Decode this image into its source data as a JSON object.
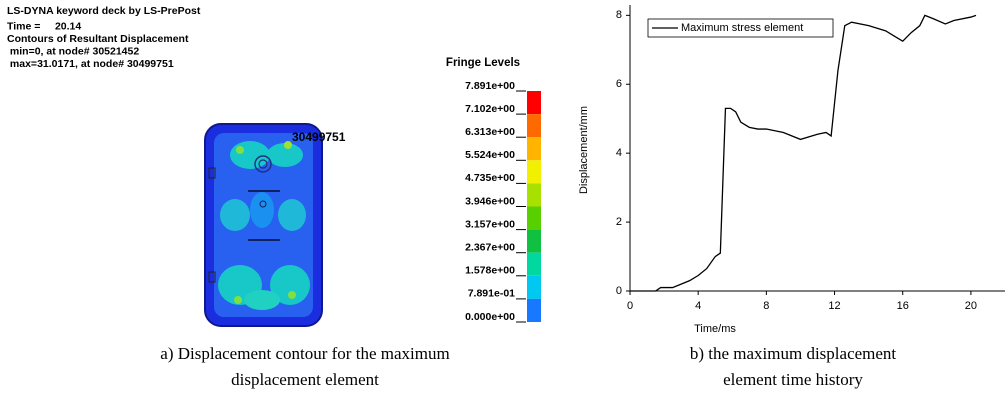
{
  "chart_data": [
    {
      "type": "contour",
      "header": [
        "LS-DYNA keyword deck by LS-PrePost",
        "Time =     20.14",
        "Contours of Resultant Displacement",
        " min=0, at node# 30521452",
        " max=31.0171, at node# 30499751"
      ],
      "node_label": "30499751",
      "legend_title": "Fringe Levels",
      "fringe_levels": [
        {
          "value": 7.891,
          "label": "7.891e+00"
        },
        {
          "value": 7.102,
          "label": "7.102e+00"
        },
        {
          "value": 6.313,
          "label": "6.313e+00"
        },
        {
          "value": 5.524,
          "label": "5.524e+00"
        },
        {
          "value": 4.735,
          "label": "4.735e+00"
        },
        {
          "value": 3.946,
          "label": "3.946e+00"
        },
        {
          "value": 3.157,
          "label": "3.157e+00"
        },
        {
          "value": 2.367,
          "label": "2.367e+00"
        },
        {
          "value": 1.578,
          "label": "1.578e+00"
        },
        {
          "value": 0.7891,
          "label": "7.891e-01"
        },
        {
          "value": 0,
          "label": "0.000e+00"
        }
      ],
      "fringe_colors": [
        "#ff0000",
        "#ff6a00",
        "#ffb400",
        "#f0f000",
        "#a8e000",
        "#58d000",
        "#10c040",
        "#00d8a0",
        "#00c8f0",
        "#1878ff"
      ],
      "caption": [
        "a) Displacement contour for the maximum",
        "displacement element"
      ]
    },
    {
      "type": "line",
      "x_label": "Time/ms",
      "y_label": "Displacement/mm",
      "x": [
        0,
        1.5,
        1.8,
        2.5,
        3,
        3.5,
        4,
        4.5,
        5,
        5.3,
        5.6,
        5.9,
        6.2,
        6.5,
        7,
        7.5,
        8,
        9,
        10,
        11,
        11.5,
        11.8,
        12.2,
        12.6,
        13,
        14,
        15,
        15.5,
        16,
        16.5,
        17,
        17.3,
        17.8,
        18.5,
        19,
        20,
        20.3
      ],
      "series": [
        {
          "name": "Maximum stress element",
          "color": "#000000",
          "values": [
            0,
            0,
            0.1,
            0.1,
            0.2,
            0.3,
            0.45,
            0.65,
            1.0,
            1.1,
            5.3,
            5.3,
            5.2,
            4.9,
            4.75,
            4.7,
            4.7,
            4.6,
            4.4,
            4.55,
            4.6,
            4.5,
            6.4,
            7.7,
            7.8,
            7.7,
            7.55,
            7.4,
            7.25,
            7.5,
            7.7,
            8.0,
            7.9,
            7.75,
            7.85,
            7.95,
            8.0
          ]
        }
      ],
      "xlim": [
        0,
        22
      ],
      "ylim": [
        0,
        8.3
      ],
      "xticks": [
        0,
        4,
        8,
        12,
        16,
        20
      ],
      "yticks": [
        0,
        2,
        4,
        6,
        8
      ],
      "caption": [
        "b) the maximum displacement",
        "element time history"
      ]
    }
  ]
}
